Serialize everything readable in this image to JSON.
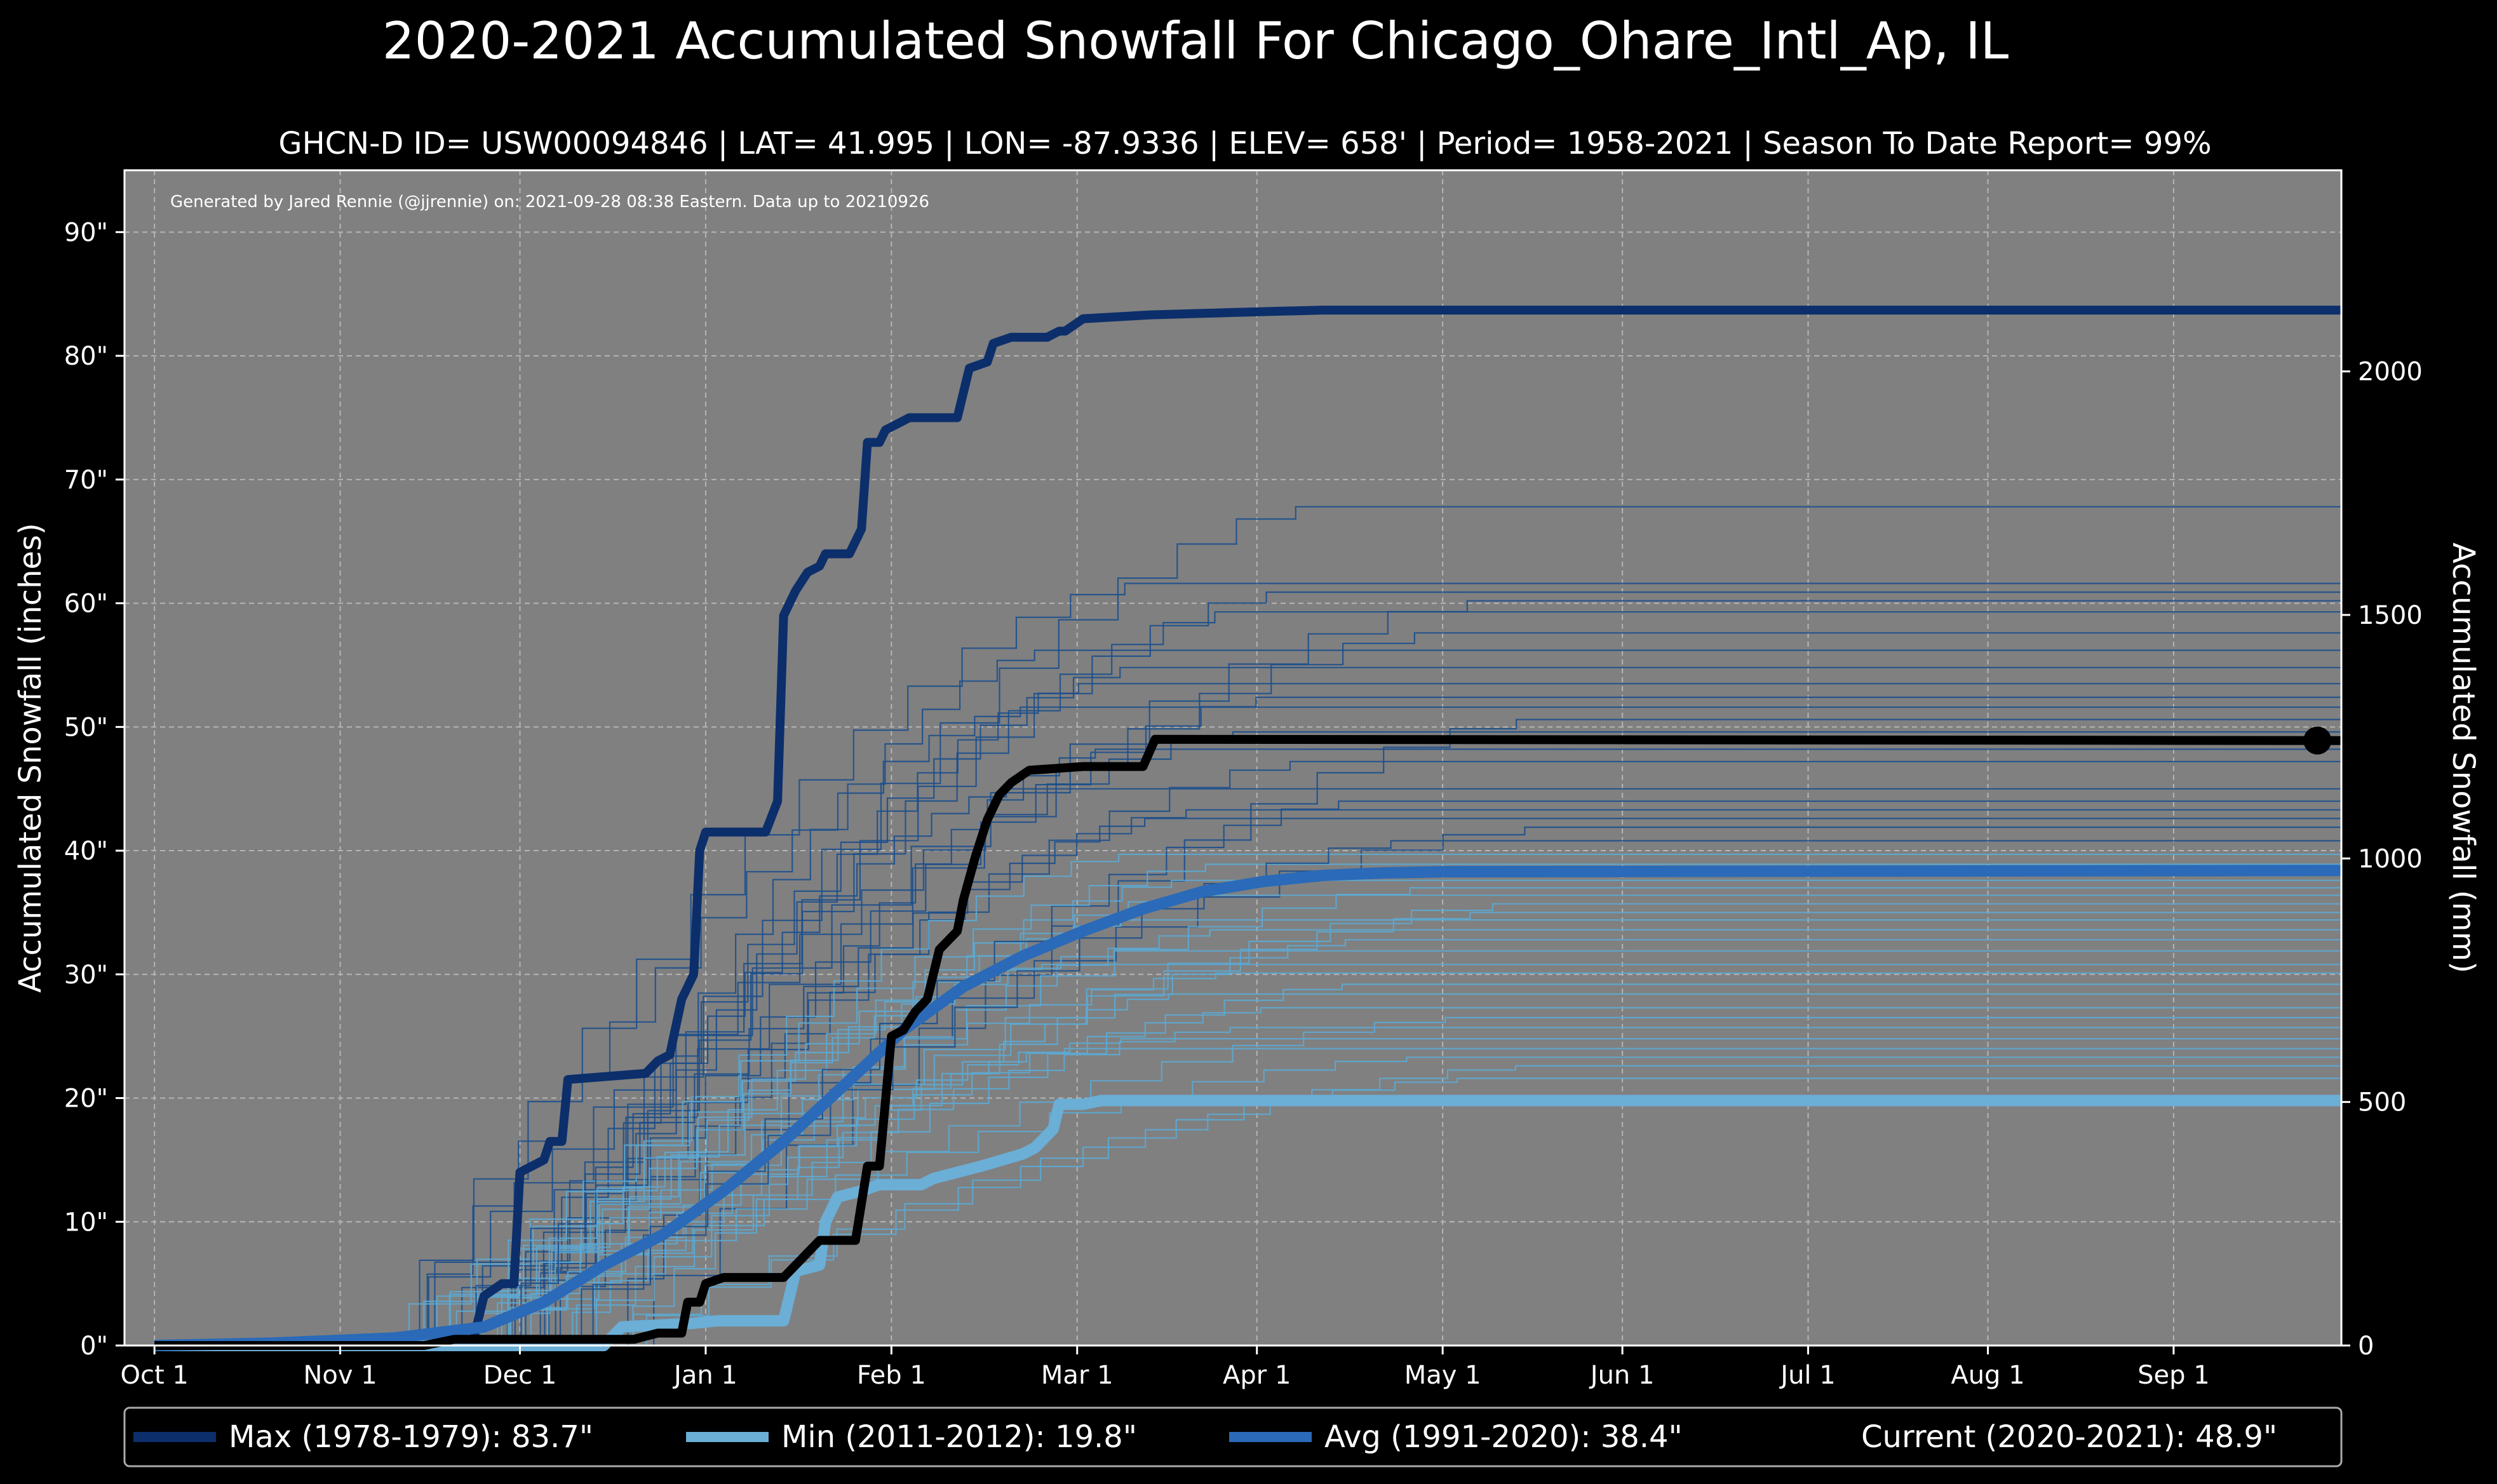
{
  "chart_data": {
    "type": "line",
    "title": "2020-2021 Accumulated Snowfall For Chicago_Ohare_Intl_Ap, IL",
    "subtitle": "GHCN-D ID= USW00094846 | LAT= 41.995 | LON= -87.9336 | ELEV= 658' | Period= 1958-2021 | Season To Date Report= 99%",
    "credit": "Generated by Jared Rennie (@jjrennie) on: 2021-09-28 08:38 Eastern. Data up to 20210926",
    "ylabel_left": "Accumulated Snowfall (inches)",
    "ylabel_right": "Accumulated Snowfall (mm)",
    "xlabel": "",
    "x_unit": "day of season (0 = Oct 1)",
    "xlim": [
      -5,
      365
    ],
    "ylim": [
      0,
      95
    ],
    "ylim_right_mm": [
      0,
      2413
    ],
    "grid": true,
    "x_ticks": [
      {
        "day": 0,
        "label": "Oct 1"
      },
      {
        "day": 31,
        "label": "Nov 1"
      },
      {
        "day": 61,
        "label": "Dec 1"
      },
      {
        "day": 92,
        "label": "Jan 1"
      },
      {
        "day": 123,
        "label": "Feb 1"
      },
      {
        "day": 154,
        "label": "Mar 1"
      },
      {
        "day": 184,
        "label": "Apr 1"
      },
      {
        "day": 215,
        "label": "May 1"
      },
      {
        "day": 245,
        "label": "Jun 1"
      },
      {
        "day": 276,
        "label": "Jul 1"
      },
      {
        "day": 306,
        "label": "Aug 1"
      },
      {
        "day": 337,
        "label": "Sep 1"
      }
    ],
    "y_ticks_left": [
      {
        "value": 0,
        "label": "0\""
      },
      {
        "value": 10,
        "label": "10\""
      },
      {
        "value": 20,
        "label": "20\""
      },
      {
        "value": 30,
        "label": "30\""
      },
      {
        "value": 40,
        "label": "40\""
      },
      {
        "value": 50,
        "label": "50\""
      },
      {
        "value": 60,
        "label": "60\""
      },
      {
        "value": 70,
        "label": "70\""
      },
      {
        "value": 80,
        "label": "80\""
      },
      {
        "value": 90,
        "label": "90\""
      }
    ],
    "y_ticks_right": [
      {
        "value": 0,
        "label": "0"
      },
      {
        "value": 500,
        "label": "500"
      },
      {
        "value": 1000,
        "label": "1000"
      },
      {
        "value": 1500,
        "label": "1500"
      },
      {
        "value": 2000,
        "label": "2000"
      }
    ],
    "highlight_series": [
      {
        "key": "max",
        "name": "Max (1978-1979)",
        "total": "83.7\"",
        "color": "#0c2f6b",
        "points": [
          [
            0,
            0
          ],
          [
            53,
            0
          ],
          [
            55,
            4
          ],
          [
            58,
            5
          ],
          [
            60,
            5
          ],
          [
            61,
            14
          ],
          [
            63,
            14.5
          ],
          [
            65,
            15
          ],
          [
            66,
            16.5
          ],
          [
            68,
            16.5
          ],
          [
            69,
            21.5
          ],
          [
            82,
            22
          ],
          [
            84,
            23
          ],
          [
            86,
            23.5
          ],
          [
            88,
            28
          ],
          [
            90,
            30
          ],
          [
            91,
            40
          ],
          [
            92,
            41.5
          ],
          [
            102,
            41.5
          ],
          [
            104,
            44
          ],
          [
            105,
            59
          ],
          [
            107,
            61
          ],
          [
            109,
            62.5
          ],
          [
            111,
            63
          ],
          [
            112,
            64
          ],
          [
            116,
            64
          ],
          [
            118,
            66
          ],
          [
            119,
            73
          ],
          [
            121,
            73
          ],
          [
            122,
            74
          ],
          [
            124,
            74.5
          ],
          [
            126,
            75
          ],
          [
            134,
            75
          ],
          [
            136,
            79
          ],
          [
            139,
            79.5
          ],
          [
            140,
            81
          ],
          [
            143,
            81.5
          ],
          [
            149,
            81.5
          ],
          [
            151,
            82
          ],
          [
            152,
            82
          ],
          [
            155,
            83
          ],
          [
            166,
            83.3
          ],
          [
            180,
            83.5
          ],
          [
            195,
            83.7
          ],
          [
            365,
            83.7
          ]
        ]
      },
      {
        "key": "min",
        "name": "Min (2011-2012)",
        "total": "19.8\"",
        "color": "#6baed6",
        "points": [
          [
            0,
            0
          ],
          [
            75,
            0
          ],
          [
            78,
            1.5
          ],
          [
            90,
            1.8
          ],
          [
            94,
            2
          ],
          [
            105,
            2
          ],
          [
            107,
            6
          ],
          [
            111,
            6.5
          ],
          [
            112,
            10
          ],
          [
            114,
            12
          ],
          [
            118,
            12.5
          ],
          [
            121,
            13
          ],
          [
            128,
            13
          ],
          [
            130,
            13.5
          ],
          [
            134,
            14
          ],
          [
            138,
            14.5
          ],
          [
            145,
            15.5
          ],
          [
            147,
            16
          ],
          [
            150,
            17.5
          ],
          [
            151,
            19.5
          ],
          [
            155,
            19.5
          ],
          [
            158,
            19.8
          ],
          [
            365,
            19.8
          ]
        ]
      },
      {
        "key": "avg",
        "name": "Avg (1991-2020)",
        "total": "38.4\"",
        "color": "#2a6ab8",
        "points": [
          [
            0,
            0
          ],
          [
            20,
            0.2
          ],
          [
            40,
            0.6
          ],
          [
            55,
            1.5
          ],
          [
            65,
            3.5
          ],
          [
            75,
            6.5
          ],
          [
            85,
            9
          ],
          [
            95,
            12.5
          ],
          [
            105,
            16.5
          ],
          [
            115,
            21
          ],
          [
            125,
            25.5
          ],
          [
            135,
            29
          ],
          [
            145,
            31.5
          ],
          [
            155,
            33.5
          ],
          [
            165,
            35.3
          ],
          [
            175,
            36.7
          ],
          [
            185,
            37.5
          ],
          [
            195,
            38
          ],
          [
            205,
            38.2
          ],
          [
            215,
            38.3
          ],
          [
            365,
            38.4
          ]
        ]
      },
      {
        "key": "current",
        "name": "Current (2020-2021)",
        "total": "48.9\"",
        "color": "#000000",
        "points": [
          [
            0,
            0
          ],
          [
            45,
            0
          ],
          [
            50,
            0.5
          ],
          [
            80,
            0.5
          ],
          [
            84,
            1
          ],
          [
            88,
            1
          ],
          [
            89,
            3.5
          ],
          [
            91,
            3.5
          ],
          [
            92,
            5
          ],
          [
            95,
            5.5
          ],
          [
            105,
            5.5
          ],
          [
            108,
            7
          ],
          [
            111,
            8.5
          ],
          [
            117,
            8.5
          ],
          [
            119,
            14.5
          ],
          [
            121,
            14.5
          ],
          [
            123,
            25
          ],
          [
            125,
            25.5
          ],
          [
            127,
            27
          ],
          [
            129,
            28
          ],
          [
            131,
            32
          ],
          [
            134,
            33.5
          ],
          [
            135,
            36
          ],
          [
            137,
            39.5
          ],
          [
            139,
            42.5
          ],
          [
            141,
            44.5
          ],
          [
            143,
            45.5
          ],
          [
            146,
            46.5
          ],
          [
            155,
            46.8
          ],
          [
            165,
            46.8
          ],
          [
            167,
            49
          ],
          [
            365,
            48.9
          ]
        ]
      }
    ],
    "background_seasons_final_totals": [
      67.8,
      61.6,
      60.9,
      60.2,
      59.3,
      57.6,
      56.2,
      54.8,
      53.5,
      52.4,
      51.6,
      50.6,
      49.6,
      48.2,
      47.2,
      42.6,
      41.9,
      39.7,
      37.6,
      37.0,
      36.4,
      35.7,
      35.0,
      34.4,
      33.6,
      32.8,
      31.9,
      30.8,
      30.1,
      29.2,
      28.4,
      27.3,
      26.5,
      25.7,
      24.8,
      24.0,
      23.3,
      22.6,
      21.6,
      44.0,
      45.0,
      43.3,
      38.9,
      40.8
    ]
  }
}
